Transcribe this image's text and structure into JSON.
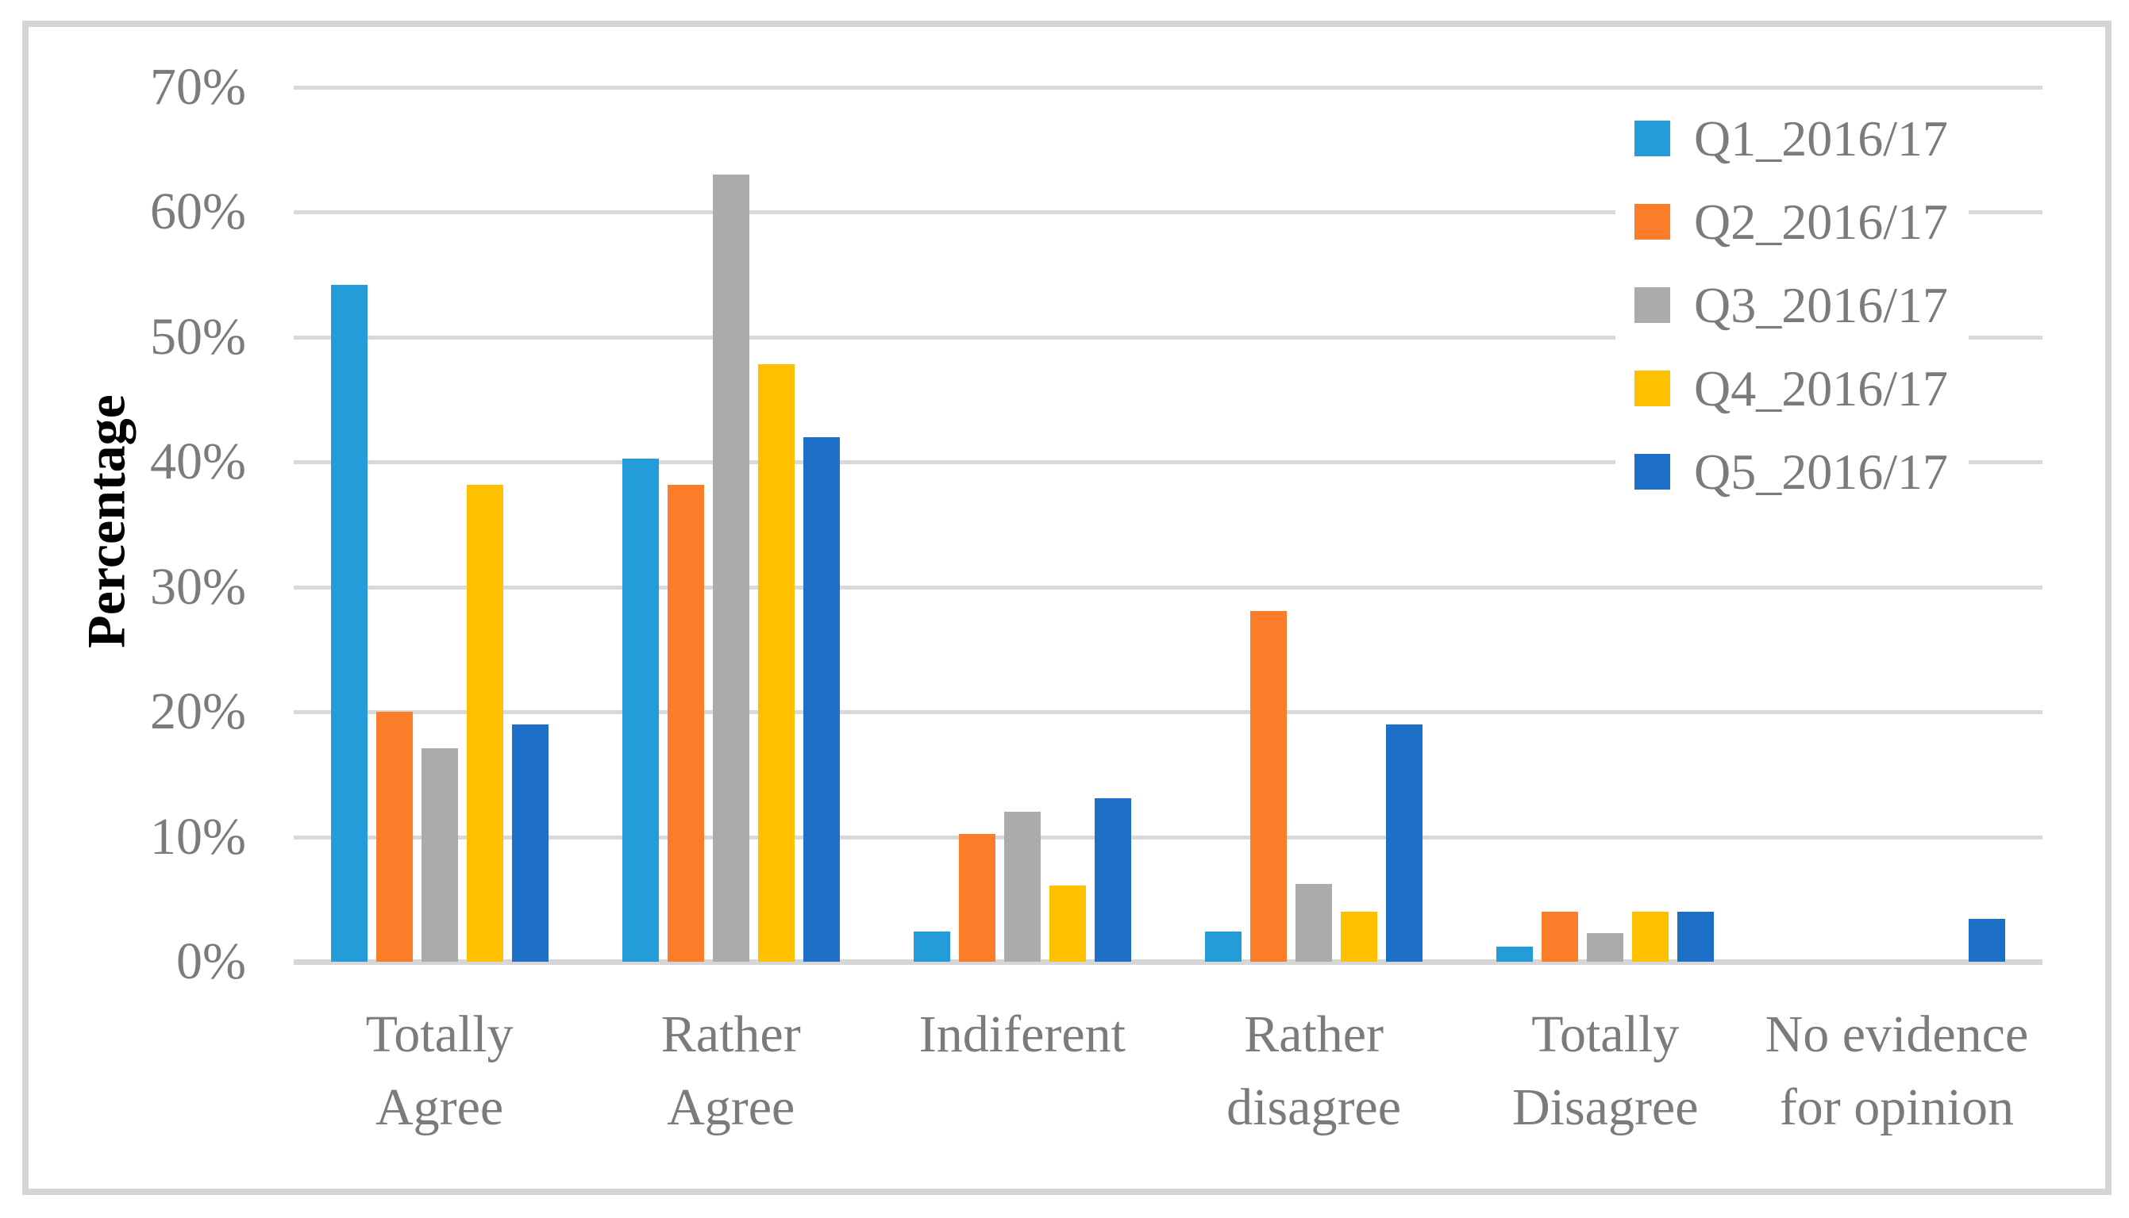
{
  "chart_data": {
    "type": "bar",
    "title": "",
    "xlabel": "",
    "ylabel": "Percentage",
    "categories": [
      "Totally Agree",
      "Rather Agree",
      "Indiferent",
      "Rather disagree",
      "Totally Disagree",
      "No evidence for opinion"
    ],
    "category_label_lines": [
      [
        "Totally",
        "Agree"
      ],
      [
        "Rather",
        "Agree"
      ],
      [
        "Indiferent"
      ],
      [
        "Rather",
        "disagree"
      ],
      [
        "Totally",
        "Disagree"
      ],
      [
        "No evidence",
        "for opinion"
      ]
    ],
    "series": [
      {
        "name": "Q1_2016/17",
        "color": "#239CD9",
        "values": [
          54.2,
          40.3,
          2.4,
          2.4,
          1.2,
          0
        ]
      },
      {
        "name": "Q2_2016/17",
        "color": "#FB7D29",
        "values": [
          20,
          38.2,
          10.2,
          28.1,
          4,
          0
        ]
      },
      {
        "name": "Q3_2016/17",
        "color": "#ABABAB",
        "values": [
          17.1,
          63,
          12,
          6.2,
          2.3,
          0
        ]
      },
      {
        "name": "Q4_2016/17",
        "color": "#FFC000",
        "values": [
          38.2,
          47.8,
          6.1,
          4,
          4,
          0
        ]
      },
      {
        "name": "Q5_2016/17",
        "color": "#1D6FC7",
        "values": [
          19,
          42,
          13.1,
          19,
          4,
          3.4
        ]
      }
    ],
    "ylim": [
      0,
      70
    ],
    "ytick_step": 10,
    "yticks": [
      "0%",
      "10%",
      "20%",
      "30%",
      "40%",
      "50%",
      "60%",
      "70%"
    ],
    "grid": true,
    "legend_position": "upper-right"
  },
  "colors": {
    "gridline": "#D9D9D9",
    "axis_line": "#D6D6D6",
    "tick_text": "#7B7B7B",
    "axis_title_text": "#000000",
    "frame_border": "#D5D5D5",
    "background": "#FFFFFF"
  }
}
